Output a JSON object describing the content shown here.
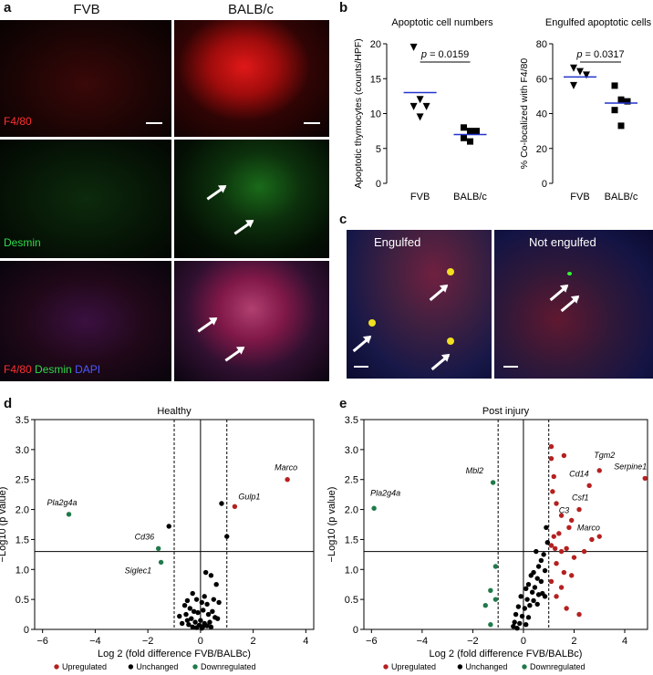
{
  "panels": {
    "a": "a",
    "b": "b",
    "c": "c",
    "d": "d",
    "e": "e"
  },
  "panel_a": {
    "col1": "FVB",
    "col2": "BALB/c",
    "row1_label": "F4/80",
    "row2_label": "Desmin",
    "row3_label": {
      "f480": "F4/80",
      "desmin": "Desmin",
      "dapi": "DAPI"
    }
  },
  "panel_c": {
    "engulfed": "Engulfed",
    "not_engulfed": "Not engulfed"
  },
  "colors": {
    "red": "#e02020",
    "green": "#19c33a",
    "blue": "#2a2ae6",
    "up": "#b52020",
    "unchanged": "#000000",
    "down": "#1f7a4a",
    "mean_line": "#2233cc"
  },
  "chart_data": [
    {
      "type": "scatter",
      "id": "b-left",
      "title": "Apoptotic cell numbers",
      "ylabel": "Apoptotic thymocytes (counts/HPF)",
      "categories": [
        "FVB",
        "BALB/c"
      ],
      "ylim": [
        0,
        20
      ],
      "yticks": [
        0,
        5,
        10,
        15,
        20
      ],
      "series": [
        {
          "name": "FVB",
          "marker": "triangle-down",
          "values": [
            19.5,
            12,
            11,
            11,
            9.5
          ],
          "mean": 13
        },
        {
          "name": "BALB/c",
          "marker": "square",
          "values": [
            8,
            7.5,
            7.5,
            6.5,
            6
          ],
          "mean": 7
        }
      ],
      "annotation": "p = 0.0159"
    },
    {
      "type": "scatter",
      "id": "b-right",
      "title": "Engulfed apoptotic cells",
      "ylabel": "% Co-localized with F4/80",
      "categories": [
        "FVB",
        "BALB/c"
      ],
      "ylim": [
        0,
        80
      ],
      "yticks": [
        0,
        20,
        40,
        60,
        80
      ],
      "series": [
        {
          "name": "FVB",
          "marker": "triangle-down",
          "values": [
            66,
            64,
            62,
            56
          ],
          "mean": 61
        },
        {
          "name": "BALB/c",
          "marker": "square",
          "values": [
            56,
            48,
            47,
            42,
            33
          ],
          "mean": 46
        }
      ],
      "annotation": "p = 0.0317"
    },
    {
      "type": "scatter",
      "id": "d",
      "title": "Healthy",
      "xlabel": "Log 2 (fold difference FVB/BALBc)",
      "ylabel": "−Log10 (p value)",
      "xlim": [
        -6.3,
        4.3
      ],
      "ylim": [
        0,
        3.5
      ],
      "xticks": [
        -6,
        -4,
        -2,
        0,
        2,
        4
      ],
      "yticks": [
        0,
        0.5,
        1.0,
        1.5,
        2.0,
        2.5,
        3.0,
        3.5
      ],
      "xtick_labels": [
        "−6",
        "−4",
        "−2",
        "0",
        "2",
        "4"
      ],
      "ytick_labels": [
        "0",
        "0.5",
        "1.0",
        "1.5",
        "2.0",
        "2.5",
        "3.0",
        "3.5"
      ],
      "hline": 1.3,
      "vlines": [
        -1,
        1
      ],
      "legend": [
        "Upregulated",
        "Unchanged",
        "Downregulated"
      ],
      "labels": [
        {
          "text": "Marco",
          "x": 3.3,
          "y": 2.5,
          "dx": -14,
          "dy": -10
        },
        {
          "text": "Gulp1",
          "x": 1.3,
          "y": 2.05,
          "dx": 4,
          "dy": -8
        },
        {
          "text": "Pla2g4a",
          "x": -5.0,
          "y": 1.92,
          "dx": -24,
          "dy": -10
        },
        {
          "text": "Cd36",
          "x": -1.6,
          "y": 1.35,
          "dx": -26,
          "dy": -10
        },
        {
          "text": "Siglec1",
          "x": -1.5,
          "y": 1.12,
          "dx": -40,
          "dy": 12
        }
      ],
      "up": [
        [
          3.3,
          2.5
        ],
        [
          1.3,
          2.05
        ]
      ],
      "down": [
        [
          -5.0,
          1.92
        ],
        [
          -1.6,
          1.35
        ],
        [
          -1.5,
          1.12
        ]
      ],
      "unchanged": [
        [
          -1.2,
          1.72
        ],
        [
          0.8,
          2.1
        ],
        [
          1.0,
          1.55
        ],
        [
          -0.5,
          0.48
        ],
        [
          -0.8,
          0.22
        ],
        [
          0.6,
          0.75
        ],
        [
          0.7,
          0.45
        ],
        [
          0.2,
          0.95
        ],
        [
          0.4,
          0.9
        ],
        [
          0.15,
          0.55
        ],
        [
          -0.3,
          0.6
        ],
        [
          -0.15,
          0.5
        ],
        [
          0.05,
          0.45
        ],
        [
          0.25,
          0.42
        ],
        [
          0.5,
          0.5
        ],
        [
          -0.6,
          0.4
        ],
        [
          -0.4,
          0.35
        ],
        [
          -0.25,
          0.3
        ],
        [
          -0.1,
          0.28
        ],
        [
          0.1,
          0.32
        ],
        [
          0.3,
          0.25
        ],
        [
          0.45,
          0.3
        ],
        [
          0.55,
          0.2
        ],
        [
          -0.5,
          0.15
        ],
        [
          -0.35,
          0.18
        ],
        [
          -0.2,
          0.12
        ],
        [
          0,
          0.15
        ],
        [
          0.15,
          0.1
        ],
        [
          0.35,
          0.12
        ],
        [
          -0.7,
          0.1
        ],
        [
          -0.45,
          0.08
        ],
        [
          -0.05,
          0.07
        ],
        [
          0.1,
          0.05
        ],
        [
          0.25,
          0.06
        ],
        [
          -0.3,
          0.04
        ],
        [
          0.05,
          0.02
        ],
        [
          -0.15,
          0.03
        ],
        [
          0.4,
          0.04
        ],
        [
          -0.55,
          0.25
        ],
        [
          0.65,
          0.18
        ]
      ]
    },
    {
      "type": "scatter",
      "id": "e",
      "title": "Post injury",
      "xlabel": "Log 2 (fold difference FVB/BALBc)",
      "ylabel": "−Log10 (p value)",
      "xlim": [
        -6.3,
        4.9
      ],
      "ylim": [
        0,
        3.5
      ],
      "xticks": [
        -6,
        -4,
        -2,
        0,
        2,
        4
      ],
      "yticks": [
        0,
        0.5,
        1.0,
        1.5,
        2.0,
        2.5,
        3.0,
        3.5
      ],
      "xtick_labels": [
        "−6",
        "−4",
        "−2",
        "0",
        "2",
        "4"
      ],
      "ytick_labels": [
        "0",
        "0.5",
        "1.0",
        "1.5",
        "2.0",
        "2.5",
        "3.0",
        "3.5"
      ],
      "hline": 1.3,
      "vlines": [
        -1,
        1
      ],
      "legend": [
        "Upregulated",
        "Unchanged",
        "Downregulated"
      ],
      "labels": [
        {
          "text": "Pla2g4a",
          "x": -5.9,
          "y": 2.02,
          "dx": -4,
          "dy": -14
        },
        {
          "text": "Mbl2",
          "x": -1.2,
          "y": 2.45,
          "dx": -30,
          "dy": -10
        },
        {
          "text": "Tgm2",
          "x": 3.0,
          "y": 2.65,
          "dx": -6,
          "dy": -14
        },
        {
          "text": "Serpine1",
          "x": 4.8,
          "y": 2.52,
          "dx": -34,
          "dy": -10
        },
        {
          "text": "Cd14",
          "x": 2.6,
          "y": 2.4,
          "dx": -22,
          "dy": -10
        },
        {
          "text": "Csf1",
          "x": 2.2,
          "y": 2.0,
          "dx": -8,
          "dy": -10
        },
        {
          "text": "C3",
          "x": 1.9,
          "y": 1.82,
          "dx": -14,
          "dy": -8
        },
        {
          "text": "Marco",
          "x": 2.7,
          "y": 1.5,
          "dx": -16,
          "dy": -10
        }
      ],
      "up": [
        [
          4.8,
          2.52
        ],
        [
          3.0,
          2.65
        ],
        [
          2.6,
          2.4
        ],
        [
          2.2,
          2.0
        ],
        [
          1.9,
          1.82
        ],
        [
          2.7,
          1.5
        ],
        [
          3.0,
          1.55
        ],
        [
          1.1,
          3.05
        ],
        [
          1.1,
          2.85
        ],
        [
          1.6,
          2.9
        ],
        [
          1.2,
          2.55
        ],
        [
          1.15,
          2.3
        ],
        [
          1.3,
          2.1
        ],
        [
          1.5,
          1.9
        ],
        [
          1.8,
          1.7
        ],
        [
          1.4,
          1.6
        ],
        [
          1.2,
          1.55
        ],
        [
          1.1,
          1.4
        ],
        [
          1.25,
          1.35
        ],
        [
          1.5,
          1.3
        ],
        [
          1.7,
          1.35
        ],
        [
          2.0,
          1.2
        ],
        [
          2.4,
          1.3
        ],
        [
          1.3,
          1.1
        ],
        [
          1.6,
          0.95
        ],
        [
          1.9,
          0.9
        ],
        [
          1.1,
          0.8
        ],
        [
          1.5,
          0.7
        ],
        [
          1.3,
          0.55
        ],
        [
          1.7,
          0.35
        ],
        [
          2.2,
          0.25
        ]
      ],
      "down": [
        [
          -5.9,
          2.02
        ],
        [
          -1.2,
          2.45
        ],
        [
          -1.1,
          1.05
        ],
        [
          -1.3,
          0.65
        ],
        [
          -1.1,
          0.5
        ],
        [
          -1.3,
          0.08
        ],
        [
          -1.5,
          0.4
        ]
      ],
      "unchanged": [
        [
          0.9,
          1.7
        ],
        [
          0.8,
          1.25
        ],
        [
          0.7,
          1.15
        ],
        [
          0.5,
          1.3
        ],
        [
          0.6,
          1.05
        ],
        [
          0.85,
          0.98
        ],
        [
          0.4,
          0.95
        ],
        [
          0.3,
          0.9
        ],
        [
          0.55,
          0.85
        ],
        [
          0.7,
          0.8
        ],
        [
          0.2,
          0.75
        ],
        [
          0.45,
          0.7
        ],
        [
          0.1,
          0.68
        ],
        [
          0.35,
          0.62
        ],
        [
          0.6,
          0.58
        ],
        [
          -0.1,
          0.55
        ],
        [
          0.15,
          0.5
        ],
        [
          0.4,
          0.48
        ],
        [
          0.25,
          0.4
        ],
        [
          -0.2,
          0.38
        ],
        [
          0.05,
          0.35
        ],
        [
          0.55,
          0.42
        ],
        [
          -0.3,
          0.25
        ],
        [
          -0.05,
          0.22
        ],
        [
          0.2,
          0.2
        ],
        [
          -0.35,
          0.12
        ],
        [
          -0.15,
          0.1
        ],
        [
          0.1,
          0.08
        ],
        [
          -0.4,
          0.05
        ],
        [
          -0.25,
          0.02
        ],
        [
          0.75,
          0.6
        ],
        [
          0.85,
          0.55
        ],
        [
          0.95,
          1.45
        ]
      ]
    }
  ]
}
